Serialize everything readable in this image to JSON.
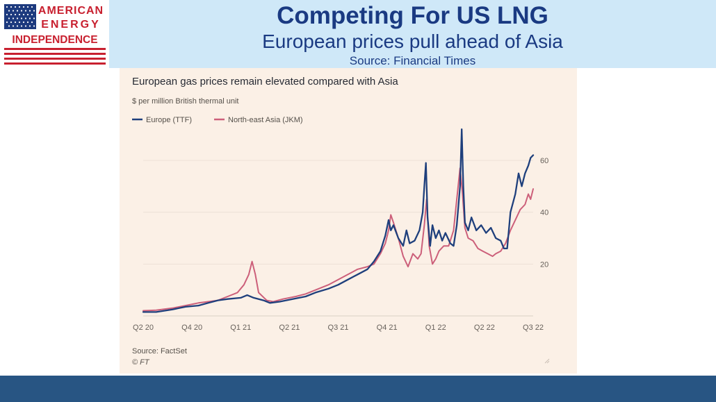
{
  "logo": {
    "line1": "AMERICAN",
    "line2": "ENERGY",
    "line3": "INDEPENDENCE",
    "colors": {
      "red": "#c8202f",
      "blue": "#1d3a7e"
    }
  },
  "header": {
    "title": "Competing For US LNG",
    "subtitle": "European prices pull ahead of Asia",
    "source": "Source: Financial Times"
  },
  "chart_data": {
    "type": "line",
    "title": "European gas prices remain elevated compared with Asia",
    "subtitle": "$ per million British thermal unit",
    "ylim": [
      0,
      70
    ],
    "yticks": [
      20,
      40,
      60
    ],
    "x_range": [
      "Q2 20",
      "Q3 22"
    ],
    "x_ticks": [
      "Q2 20",
      "Q4 20",
      "Q1 21",
      "Q2 21",
      "Q3 21",
      "Q4 21",
      "Q1 22",
      "Q2 22",
      "Q3 22"
    ],
    "grid": true,
    "legend_position": "top-left",
    "series": [
      {
        "name": "Europe (TTF)",
        "color": "#1e3f7c",
        "points": [
          [
            "Q2 20",
            1.5
          ],
          [
            0.4,
            1.5
          ],
          [
            0.9,
            2.5
          ],
          [
            1.3,
            3.5
          ],
          [
            1.7,
            4
          ],
          [
            2.0,
            5
          ],
          [
            2.3,
            6
          ],
          [
            2.6,
            6.5
          ],
          [
            3.0,
            7
          ],
          [
            3.2,
            8
          ],
          [
            3.4,
            7
          ],
          [
            3.7,
            6
          ],
          [
            3.9,
            5
          ],
          [
            4.2,
            5.5
          ],
          [
            4.6,
            6.5
          ],
          [
            5.0,
            7.5
          ],
          [
            5.3,
            9
          ],
          [
            5.7,
            10.5
          ],
          [
            6.0,
            12
          ],
          [
            6.3,
            14
          ],
          [
            6.6,
            16
          ],
          [
            6.9,
            18
          ],
          [
            7.1,
            21
          ],
          [
            7.3,
            25
          ],
          [
            7.45,
            31
          ],
          [
            7.55,
            37
          ],
          [
            7.62,
            33
          ],
          [
            7.7,
            35
          ],
          [
            7.85,
            30
          ],
          [
            8.0,
            27
          ],
          [
            8.1,
            33
          ],
          [
            8.2,
            28
          ],
          [
            8.35,
            29
          ],
          [
            8.5,
            33
          ],
          [
            8.6,
            40
          ],
          [
            8.65,
            50
          ],
          [
            8.7,
            59
          ],
          [
            8.75,
            38
          ],
          [
            8.83,
            27
          ],
          [
            8.9,
            35
          ],
          [
            9.0,
            30
          ],
          [
            9.1,
            33
          ],
          [
            9.2,
            29
          ],
          [
            9.3,
            32
          ],
          [
            9.45,
            28
          ],
          [
            9.55,
            27
          ],
          [
            9.65,
            35
          ],
          [
            9.75,
            50
          ],
          [
            9.8,
            72
          ],
          [
            9.85,
            50
          ],
          [
            9.9,
            36
          ],
          [
            10.0,
            33
          ],
          [
            10.1,
            38
          ],
          [
            10.25,
            33
          ],
          [
            10.4,
            35
          ],
          [
            10.55,
            32
          ],
          [
            10.7,
            34
          ],
          [
            10.85,
            30
          ],
          [
            11.0,
            29
          ],
          [
            11.1,
            26
          ],
          [
            11.2,
            26
          ],
          [
            11.3,
            40
          ],
          [
            11.45,
            47
          ],
          [
            11.55,
            55
          ],
          [
            11.65,
            50
          ],
          [
            11.75,
            55
          ],
          [
            11.85,
            58
          ],
          [
            11.92,
            61
          ],
          [
            12.0,
            62
          ]
        ]
      },
      {
        "name": "North-east Asia (JKM)",
        "color": "#cc5f7a",
        "points": [
          [
            "Q2 20",
            2
          ],
          [
            0.4,
            2.2
          ],
          [
            0.9,
            3
          ],
          [
            1.3,
            4
          ],
          [
            1.7,
            5
          ],
          [
            2.0,
            5.5
          ],
          [
            2.3,
            6
          ],
          [
            2.6,
            7.5
          ],
          [
            2.9,
            9
          ],
          [
            3.1,
            12
          ],
          [
            3.25,
            16
          ],
          [
            3.35,
            21
          ],
          [
            3.45,
            16
          ],
          [
            3.55,
            9
          ],
          [
            3.8,
            6
          ],
          [
            4.0,
            5.5
          ],
          [
            4.3,
            6.5
          ],
          [
            4.7,
            7.5
          ],
          [
            5.0,
            8.5
          ],
          [
            5.3,
            10
          ],
          [
            5.7,
            12
          ],
          [
            6.0,
            14
          ],
          [
            6.3,
            16
          ],
          [
            6.6,
            18
          ],
          [
            6.9,
            19
          ],
          [
            7.1,
            20
          ],
          [
            7.3,
            24
          ],
          [
            7.45,
            28
          ],
          [
            7.55,
            33
          ],
          [
            7.62,
            39
          ],
          [
            7.7,
            36
          ],
          [
            7.85,
            30
          ],
          [
            8.0,
            23
          ],
          [
            8.15,
            19
          ],
          [
            8.3,
            24
          ],
          [
            8.45,
            22
          ],
          [
            8.55,
            24
          ],
          [
            8.65,
            35
          ],
          [
            8.72,
            45
          ],
          [
            8.8,
            27
          ],
          [
            8.9,
            20
          ],
          [
            9.0,
            22
          ],
          [
            9.1,
            25
          ],
          [
            9.25,
            27
          ],
          [
            9.4,
            27
          ],
          [
            9.55,
            33
          ],
          [
            9.65,
            45
          ],
          [
            9.75,
            57
          ],
          [
            9.82,
            48
          ],
          [
            9.9,
            34
          ],
          [
            10.0,
            30
          ],
          [
            10.15,
            29
          ],
          [
            10.3,
            26
          ],
          [
            10.45,
            25
          ],
          [
            10.6,
            24
          ],
          [
            10.75,
            23
          ],
          [
            10.85,
            24
          ],
          [
            11.0,
            25
          ],
          [
            11.15,
            28
          ],
          [
            11.3,
            33
          ],
          [
            11.45,
            37
          ],
          [
            11.6,
            41
          ],
          [
            11.75,
            43
          ],
          [
            11.85,
            47
          ],
          [
            11.92,
            45
          ],
          [
            12.0,
            49
          ]
        ]
      }
    ],
    "source": "Source: FactSet",
    "credit": "© FT"
  }
}
